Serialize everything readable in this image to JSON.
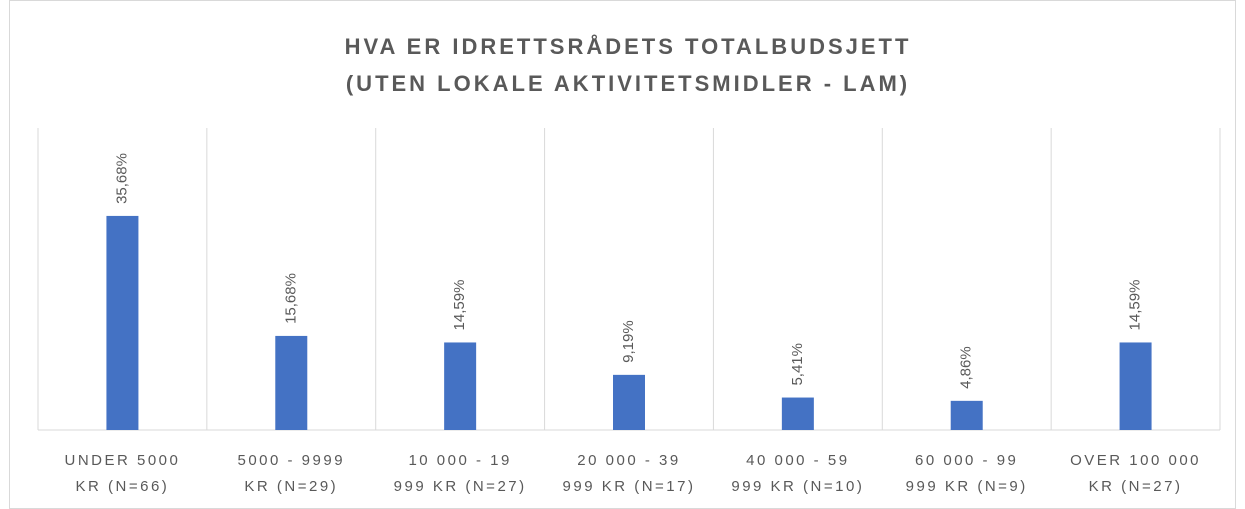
{
  "chart_data": {
    "type": "bar",
    "title": [
      "HVA ER IDRETTSRÅDETS TOTALBUDSJETT",
      "(UTEN LOKALE AKTIVITETSMIDLER - LAM)"
    ],
    "categories": [
      [
        "UNDER 5000",
        "KR (N=66)"
      ],
      [
        "5000 - 9999",
        "KR (N=29)"
      ],
      [
        "10 000 - 19",
        "999 KR (N=27)"
      ],
      [
        "20 000 - 39",
        "999 KR (N=17)"
      ],
      [
        "40 000 - 59",
        "999 KR (N=10)"
      ],
      [
        "60 000 - 99",
        "999 KR (N=9)"
      ],
      [
        "OVER 100 000",
        "KR (N=27)"
      ]
    ],
    "values": [
      35.68,
      15.68,
      14.59,
      9.19,
      5.41,
      4.86,
      14.59
    ],
    "value_labels": [
      "35,68%",
      "15,68%",
      "14,59%",
      "9,19%",
      "5,41%",
      "4,86%",
      "14,59%"
    ],
    "color": "#4472c4"
  }
}
